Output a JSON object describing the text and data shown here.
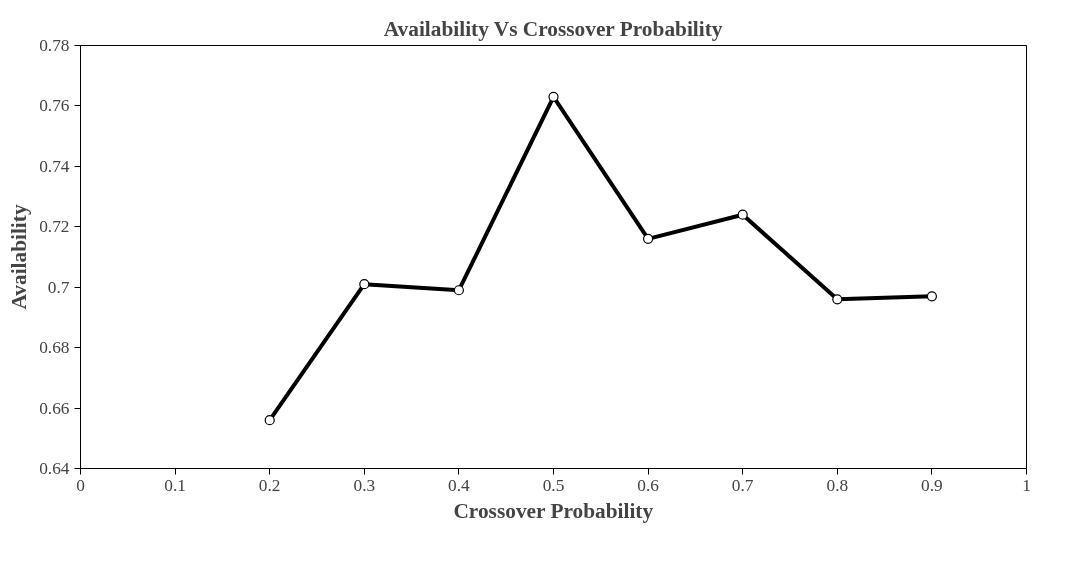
{
  "chart_data": {
    "type": "line",
    "title": "Availability Vs Crossover Probability",
    "xlabel": "Crossover Probability",
    "ylabel": "Availability",
    "x": [
      0.2,
      0.3,
      0.4,
      0.5,
      0.6,
      0.7,
      0.8,
      0.9
    ],
    "series": [
      {
        "color": "#000000",
        "values": [
          0.656,
          0.701,
          0.699,
          0.763,
          0.716,
          0.724,
          0.696,
          0.697
        ]
      }
    ],
    "xlim": [
      0,
      1
    ],
    "xticks": [
      0,
      0.1,
      0.2,
      0.3,
      0.4,
      0.5,
      0.6,
      0.7,
      0.8,
      0.9,
      1
    ],
    "ylim": [
      0.64,
      0.78
    ],
    "yticks": [
      0.64,
      0.66,
      0.68,
      {
        "value": 0.7,
        "label": "0.7"
      },
      0.72,
      0.74,
      0.76,
      0.78
    ],
    "grid": false,
    "marker": "circle",
    "line_style": "solid"
  }
}
